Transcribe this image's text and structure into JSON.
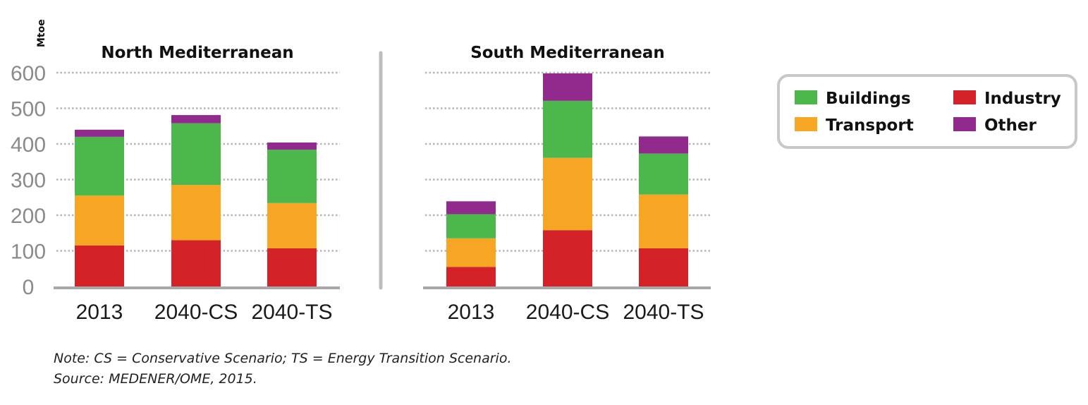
{
  "unit_label": "Mtoe",
  "colors": {
    "Industry": "#d42229",
    "Transport": "#f6a623",
    "Buildings": "#4cb84c",
    "Other": "#922a8e"
  },
  "legend": [
    {
      "name": "Buildings",
      "color": "#4cb84c"
    },
    {
      "name": "Industry",
      "color": "#d42229"
    },
    {
      "name": "Transport",
      "color": "#f6a623"
    },
    {
      "name": "Other",
      "color": "#922a8e"
    }
  ],
  "chart_data": [
    {
      "type": "bar",
      "stacked": true,
      "title": "North Mediterranean",
      "ylabel": "Mtoe",
      "ylim": [
        0,
        600
      ],
      "yticks": [
        0,
        100,
        200,
        300,
        400,
        500,
        600
      ],
      "categories": [
        "2013",
        "2040-CS",
        "2040-TS"
      ],
      "series": [
        {
          "name": "Industry",
          "values": [
            115,
            130,
            107
          ]
        },
        {
          "name": "Transport",
          "values": [
            140,
            155,
            127
          ]
        },
        {
          "name": "Buildings",
          "values": [
            165,
            173,
            150
          ]
        },
        {
          "name": "Other",
          "values": [
            20,
            23,
            20
          ]
        }
      ],
      "grid": true
    },
    {
      "type": "bar",
      "stacked": true,
      "title": "South Mediterranean",
      "ylabel": "Mtoe",
      "ylim": [
        0,
        600
      ],
      "yticks": [
        0,
        100,
        200,
        300,
        400,
        500,
        600
      ],
      "categories": [
        "2013",
        "2040-CS",
        "2040-TS"
      ],
      "series": [
        {
          "name": "Industry",
          "values": [
            55,
            158,
            107
          ]
        },
        {
          "name": "Transport",
          "values": [
            80,
            203,
            151
          ]
        },
        {
          "name": "Buildings",
          "values": [
            68,
            160,
            115
          ]
        },
        {
          "name": "Other",
          "values": [
            36,
            77,
            48
          ]
        }
      ],
      "grid": true
    }
  ],
  "note": "Note: CS = Conservative Scenario; TS = Energy Transition Scenario.",
  "source": "Source: MEDENER/OME, 2015."
}
